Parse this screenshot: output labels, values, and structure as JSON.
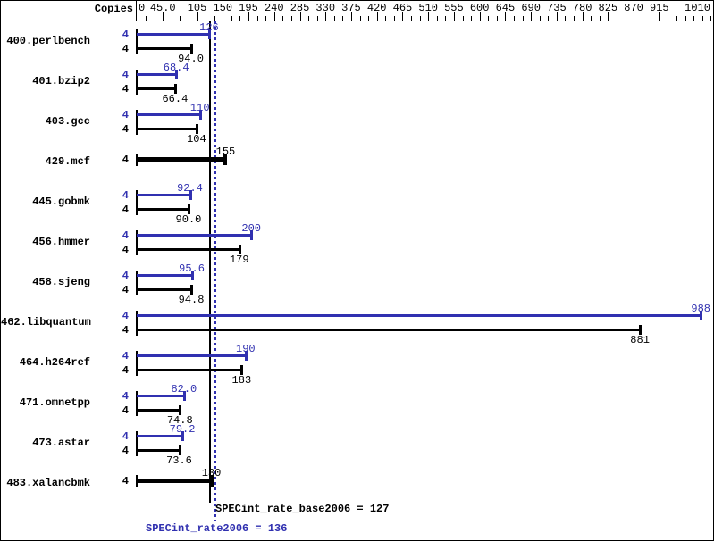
{
  "header": {
    "copies_column_label": "Copies"
  },
  "colors": {
    "peak_blue": "#3030b0",
    "base_black": "#000000",
    "background": "#ffffff"
  },
  "chart_data": {
    "type": "bar",
    "orientation": "horizontal",
    "copies_per_benchmark": 4,
    "x_axis": {
      "min": 0,
      "max": 1010,
      "minor_tick_step": 15,
      "major_ticks": [
        {
          "value": 0,
          "label": "0"
        },
        {
          "value": 45,
          "label": "45.0"
        },
        {
          "value": 105,
          "label": "105"
        },
        {
          "value": 150,
          "label": "150"
        },
        {
          "value": 195,
          "label": "195"
        },
        {
          "value": 240,
          "label": "240"
        },
        {
          "value": 285,
          "label": "285"
        },
        {
          "value": 330,
          "label": "330"
        },
        {
          "value": 375,
          "label": "375"
        },
        {
          "value": 420,
          "label": "420"
        },
        {
          "value": 465,
          "label": "465"
        },
        {
          "value": 510,
          "label": "510"
        },
        {
          "value": 555,
          "label": "555"
        },
        {
          "value": 600,
          "label": "600"
        },
        {
          "value": 645,
          "label": "645"
        },
        {
          "value": 690,
          "label": "690"
        },
        {
          "value": 735,
          "label": "735"
        },
        {
          "value": 780,
          "label": "780"
        },
        {
          "value": 825,
          "label": "825"
        },
        {
          "value": 870,
          "label": "870"
        },
        {
          "value": 915,
          "label": "915"
        },
        {
          "value": 1010,
          "label": "1010"
        }
      ]
    },
    "series": [
      {
        "name": "peak",
        "color": "#3030b0"
      },
      {
        "name": "base",
        "color": "#000000"
      }
    ],
    "rows": [
      {
        "benchmark": "400.perlbench",
        "copies": "4",
        "peak": 126,
        "peak_label": "126",
        "base": 94.0,
        "base_label": "94.0",
        "single": false
      },
      {
        "benchmark": "401.bzip2",
        "copies": "4",
        "peak": 68.4,
        "peak_label": "68.4",
        "base": 66.4,
        "base_label": "66.4",
        "single": false
      },
      {
        "benchmark": "403.gcc",
        "copies": "4",
        "peak": 110,
        "peak_label": "110",
        "base": 104,
        "base_label": "104",
        "single": false
      },
      {
        "benchmark": "429.mcf",
        "copies": "4",
        "peak": 155,
        "peak_label": "155",
        "base": 155,
        "base_label": "155",
        "single": true
      },
      {
        "benchmark": "445.gobmk",
        "copies": "4",
        "peak": 92.4,
        "peak_label": "92.4",
        "base": 90.0,
        "base_label": "90.0",
        "single": false
      },
      {
        "benchmark": "456.hmmer",
        "copies": "4",
        "peak": 200,
        "peak_label": "200",
        "base": 179,
        "base_label": "179",
        "single": false
      },
      {
        "benchmark": "458.sjeng",
        "copies": "4",
        "peak": 95.6,
        "peak_label": "95.6",
        "base": 94.8,
        "base_label": "94.8",
        "single": false
      },
      {
        "benchmark": "462.libquantum",
        "copies": "4",
        "peak": 988,
        "peak_label": "988",
        "base": 881,
        "base_label": "881",
        "single": false
      },
      {
        "benchmark": "464.h264ref",
        "copies": "4",
        "peak": 190,
        "peak_label": "190",
        "base": 183,
        "base_label": "183",
        "single": false
      },
      {
        "benchmark": "471.omnetpp",
        "copies": "4",
        "peak": 82.0,
        "peak_label": "82.0",
        "base": 74.8,
        "base_label": "74.8",
        "single": false
      },
      {
        "benchmark": "473.astar",
        "copies": "4",
        "peak": 79.2,
        "peak_label": "79.2",
        "base": 73.6,
        "base_label": "73.6",
        "single": false
      },
      {
        "benchmark": "483.xalancbmk",
        "copies": "4",
        "peak": 130,
        "peak_label": "130",
        "base": 130,
        "base_label": "130",
        "single": true
      }
    ],
    "reference_lines": [
      {
        "name": "SPECint_rate_base2006",
        "value": 127,
        "style": "solid",
        "color": "#000000",
        "text": "SPECint_rate_base2006 = 127"
      },
      {
        "name": "SPECint_rate2006",
        "value": 136,
        "style": "dotted",
        "color": "#3030b0",
        "text": "SPECint_rate2006 = 136"
      }
    ]
  }
}
